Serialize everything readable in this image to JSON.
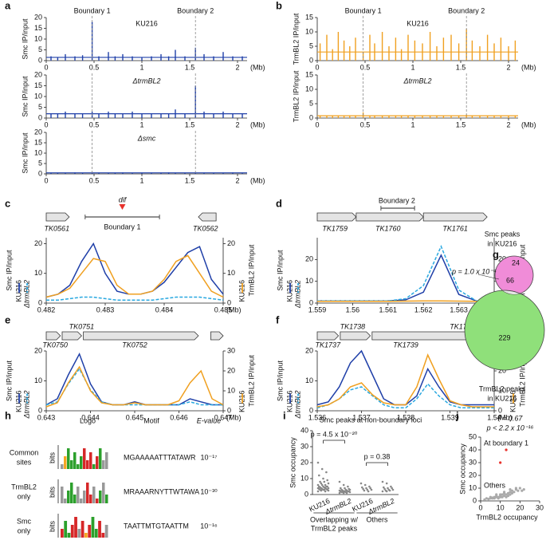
{
  "chart_data": [
    {
      "type": "bar",
      "panel": "a",
      "ylabel": "Smc IP/input",
      "label": "KU216",
      "color": "#1f3fa8",
      "x": [
        0.05,
        0.12,
        0.2,
        0.3,
        0.38,
        0.48,
        0.55,
        0.65,
        0.72,
        0.8,
        0.9,
        1.0,
        1.1,
        1.2,
        1.28,
        1.35,
        1.45,
        1.56,
        1.65,
        1.75,
        1.85,
        1.95,
        2.05
      ],
      "values": [
        2,
        1.5,
        3,
        2,
        2.5,
        18,
        2,
        4,
        2,
        3,
        2,
        1.5,
        2,
        3,
        2,
        5,
        2,
        6,
        3,
        2,
        4,
        2,
        2
      ],
      "xlim": [
        0,
        2.1
      ],
      "xticks": [
        0,
        0.5,
        1,
        1.5,
        2
      ],
      "ylim": [
        0,
        20
      ],
      "yticks": [
        0,
        5,
        10,
        15,
        20
      ],
      "xunit": "(Mb)",
      "vlines": [
        0.48,
        1.56
      ],
      "vline_labels": [
        "Boundary 1",
        "Boundary 2"
      ]
    },
    {
      "type": "bar",
      "ylabel": "Smc IP/input",
      "label": "ΔtrmBL2",
      "color": "#1f3fa8",
      "x": [
        0.05,
        0.12,
        0.2,
        0.3,
        0.38,
        0.48,
        0.55,
        0.65,
        0.72,
        0.8,
        0.9,
        1.0,
        1.1,
        1.2,
        1.28,
        1.35,
        1.45,
        1.56,
        1.65,
        1.75,
        1.85,
        1.95,
        2.05
      ],
      "values": [
        2,
        2,
        3,
        2,
        2,
        3,
        2,
        3,
        2,
        2,
        3,
        2,
        2,
        2,
        2,
        4,
        2,
        15,
        3,
        2,
        3,
        2,
        2
      ],
      "xlim": [
        0,
        2.1
      ],
      "xticks": [
        0,
        0.5,
        1,
        1.5,
        2
      ],
      "ylim": [
        0,
        20
      ],
      "yticks": [
        0,
        5,
        10,
        15,
        20
      ],
      "xunit": "(Mb)",
      "vlines": [
        0.48,
        1.56
      ]
    },
    {
      "type": "bar",
      "ylabel": "Smc IP/input",
      "label": "Δsmc",
      "color": "#1f3fa8",
      "x": [
        0.05,
        0.12,
        0.2,
        0.3,
        0.38,
        0.48,
        0.55,
        0.65,
        0.72,
        0.8,
        0.9,
        1.0,
        1.1,
        1.2,
        1.28,
        1.35,
        1.45,
        1.56,
        1.65,
        1.75,
        1.85,
        1.95,
        2.05
      ],
      "values": [
        0.6,
        0.5,
        0.6,
        0.7,
        0.5,
        0.8,
        0.6,
        0.5,
        0.6,
        0.7,
        0.5,
        0.6,
        0.6,
        0.5,
        0.7,
        0.6,
        0.5,
        0.8,
        0.6,
        0.5,
        0.6,
        0.7,
        0.6
      ],
      "xlim": [
        0,
        2.1
      ],
      "xticks": [
        0,
        0.5,
        1,
        1.5,
        2
      ],
      "ylim": [
        0,
        20
      ],
      "yticks": [
        0,
        5,
        10,
        15,
        20
      ],
      "xunit": "(Mb)",
      "vlines": [
        0.48,
        1.56
      ]
    },
    {
      "type": "bar",
      "panel": "b",
      "ylabel": "TrmBL2 IP/input",
      "label": "KU216",
      "color": "#f0a020",
      "x": [
        0.03,
        0.1,
        0.16,
        0.22,
        0.28,
        0.34,
        0.4,
        0.48,
        0.55,
        0.6,
        0.68,
        0.75,
        0.82,
        0.88,
        0.95,
        1.02,
        1.1,
        1.18,
        1.25,
        1.32,
        1.4,
        1.48,
        1.56,
        1.62,
        1.7,
        1.78,
        1.85,
        1.92,
        2.0,
        2.07
      ],
      "values": [
        6,
        9,
        4,
        10,
        7,
        5,
        8,
        3,
        9,
        6,
        10,
        5,
        8,
        4,
        9,
        7,
        6,
        10,
        5,
        8,
        9,
        6,
        11,
        7,
        5,
        9,
        6,
        8,
        5,
        7
      ],
      "xlim": [
        0,
        2.1
      ],
      "xticks": [
        0,
        0.5,
        1,
        1.5,
        2
      ],
      "ylim": [
        0,
        15
      ],
      "yticks": [
        0,
        5,
        10,
        15
      ],
      "xunit": "(Mb)",
      "vlines": [
        0.48,
        1.56
      ],
      "vline_labels": [
        "Boundary 1",
        "Boundary 2"
      ]
    },
    {
      "type": "bar",
      "ylabel": "TrmBL2 IP/input",
      "label": "ΔtrmBL2",
      "color": "#f0a020",
      "x": [
        0.03,
        0.1,
        0.16,
        0.22,
        0.28,
        0.34,
        0.4,
        0.48,
        0.55,
        0.6,
        0.68,
        0.75,
        0.82,
        0.88,
        0.95,
        1.02,
        1.1,
        1.18,
        1.25,
        1.32,
        1.4,
        1.48,
        1.56,
        1.62,
        1.7,
        1.78,
        1.85,
        1.92,
        2.0,
        2.07
      ],
      "values": [
        0.8,
        0.9,
        0.8,
        0.9,
        0.8,
        0.9,
        0.8,
        2,
        0.9,
        0.8,
        0.9,
        0.8,
        0.9,
        0.8,
        0.9,
        0.8,
        0.9,
        0.8,
        0.9,
        0.8,
        0.9,
        0.8,
        1.2,
        0.9,
        0.8,
        0.9,
        0.8,
        0.9,
        0.8,
        0.9
      ],
      "xlim": [
        0,
        2.1
      ],
      "xticks": [
        0,
        0.5,
        1,
        1.5,
        2
      ],
      "ylim": [
        0,
        15
      ],
      "yticks": [
        0,
        5,
        10,
        15
      ],
      "xunit": "(Mb)",
      "vlines": [
        0.48,
        1.56
      ]
    },
    {
      "type": "line",
      "panel": "c",
      "genes": [
        "TK0561",
        "TK0562"
      ],
      "annotations": [
        "dif",
        "Boundary 1"
      ],
      "ylabel": "Smc IP/input",
      "y2label": "TrmBL2 IP/input",
      "xunit": "(Mb)",
      "x": [
        0.482,
        0.4822,
        0.4824,
        0.4826,
        0.4828,
        0.483,
        0.4832,
        0.4834,
        0.4836,
        0.4838,
        0.484,
        0.4842,
        0.4844,
        0.4846,
        0.4848,
        0.485
      ],
      "series": [
        {
          "name": "KU216",
          "color": "#1f3fa8",
          "values": [
            2,
            3,
            6,
            14,
            20,
            10,
            4,
            3,
            3,
            4,
            7,
            12,
            17,
            19,
            8,
            3
          ]
        },
        {
          "name": "ΔtrmBL2",
          "color": "#29a8e0",
          "dashed": true,
          "values": [
            1,
            1,
            1.5,
            2,
            2,
            1.5,
            1,
            1,
            1,
            1,
            1.5,
            2,
            2,
            2,
            1.5,
            1
          ]
        },
        {
          "name": "KU216",
          "color": "#f0a020",
          "axis": "y2",
          "values": [
            2,
            3,
            5,
            10,
            15,
            14,
            6,
            3,
            3,
            4,
            8,
            14,
            16,
            10,
            4,
            2
          ]
        }
      ],
      "xlim": [
        0.482,
        0.485
      ],
      "xticks": [
        0.482,
        0.483,
        0.484,
        0.485
      ],
      "ylim": [
        0,
        22
      ],
      "yticks": [
        0,
        10,
        20
      ],
      "y2lim": [
        0,
        22
      ],
      "y2ticks": [
        0,
        10,
        20
      ]
    },
    {
      "type": "line",
      "panel": "d",
      "genes": [
        "TK1759",
        "TK1760",
        "TK1761"
      ],
      "annotations": [
        "Boundary 2"
      ],
      "ylabel": "Smc IP/input",
      "y2label": "TrmBL2 IP/input",
      "xunit": "(Mb)",
      "x": [
        1.559,
        1.5595,
        1.56,
        1.5605,
        1.561,
        1.5615,
        1.562,
        1.5625,
        1.563,
        1.5635,
        1.564
      ],
      "series": [
        {
          "name": "KU216",
          "color": "#1f3fa8",
          "values": [
            1,
            1,
            1,
            1,
            1,
            1.5,
            5,
            22,
            4,
            1,
            1
          ]
        },
        {
          "name": "ΔtrmBL2",
          "color": "#29a8e0",
          "dashed": true,
          "values": [
            1,
            1,
            1,
            1,
            1,
            2,
            8,
            26,
            6,
            1,
            1
          ]
        },
        {
          "name": "KU216",
          "color": "#f0a020",
          "axis": "y2",
          "values": [
            0.8,
            0.8,
            0.8,
            0.8,
            0.8,
            0.9,
            1,
            1,
            0.9,
            0.8,
            0.8
          ]
        }
      ],
      "xlim": [
        1.559,
        1.564
      ],
      "xticks": [
        1.559,
        1.56,
        1.561,
        1.562,
        1.563,
        1.564
      ],
      "ylim": [
        0,
        30
      ],
      "yticks": [
        0,
        10,
        20
      ],
      "y2lim": [
        0,
        30
      ],
      "y2ticks": [
        0,
        10,
        20
      ]
    },
    {
      "type": "line",
      "panel": "e",
      "genes": [
        "TK0751",
        "TK0750",
        "TK0752"
      ],
      "ylabel": "Smc IP/input",
      "y2label": "TrmBL2 IP/input",
      "xunit": "(Mb)",
      "x": [
        0.643,
        0.64325,
        0.6435,
        0.64375,
        0.644,
        0.64425,
        0.6445,
        0.64475,
        0.645,
        0.64525,
        0.6455,
        0.64575,
        0.646,
        0.64625,
        0.6465,
        0.64675,
        0.647
      ],
      "series": [
        {
          "name": "KU216",
          "color": "#1f3fa8",
          "values": [
            2,
            4,
            12,
            19,
            9,
            3,
            2,
            2,
            3,
            2,
            2,
            2,
            2,
            4,
            3,
            2,
            2
          ]
        },
        {
          "name": "ΔtrmBL2",
          "color": "#29a8e0",
          "dashed": true,
          "values": [
            2,
            3,
            9,
            14,
            7,
            3,
            2,
            2,
            2,
            2,
            2,
            2,
            2,
            3,
            2,
            2,
            2
          ]
        },
        {
          "name": "KU216",
          "color": "#f0a020",
          "axis": "y2",
          "values": [
            2,
            4,
            14,
            22,
            10,
            4,
            3,
            3,
            4,
            3,
            3,
            3,
            5,
            14,
            20,
            6,
            3
          ]
        }
      ],
      "xlim": [
        0.643,
        0.647
      ],
      "xticks": [
        0.643,
        0.644,
        0.645,
        0.646,
        0.647
      ],
      "ylim": [
        0,
        20
      ],
      "yticks": [
        0,
        10,
        20
      ],
      "y2lim": [
        0,
        30
      ],
      "y2ticks": [
        0,
        10,
        20,
        30
      ]
    },
    {
      "type": "line",
      "panel": "f",
      "genes": [
        "TK1738",
        "TK1740",
        "TK1737",
        "TK1739"
      ],
      "ylabel": "Smc IP/input",
      "y2label": "TrmBL2 IP/input",
      "xunit": "(Mb)",
      "x": [
        1.536,
        1.53625,
        1.5365,
        1.53675,
        1.537,
        1.53725,
        1.5375,
        1.53775,
        1.538,
        1.53825,
        1.5385,
        1.53875,
        1.539,
        1.53925,
        1.5395,
        1.53975,
        1.54
      ],
      "series": [
        {
          "name": "KU216",
          "color": "#1f3fa8",
          "values": [
            2,
            3,
            8,
            16,
            20,
            12,
            4,
            2,
            2,
            5,
            14,
            8,
            3,
            2,
            2,
            2,
            2
          ]
        },
        {
          "name": "ΔtrmBL2",
          "color": "#29a8e0",
          "dashed": true,
          "values": [
            1,
            2,
            4,
            7,
            8,
            5,
            2,
            1,
            1,
            4,
            9,
            5,
            2,
            1,
            1,
            1,
            1
          ]
        },
        {
          "name": "KU216",
          "color": "#f0a020",
          "axis": "y2",
          "values": [
            2,
            3,
            6,
            12,
            14,
            8,
            4,
            3,
            3,
            12,
            28,
            16,
            5,
            3,
            2,
            2,
            2
          ]
        }
      ],
      "xlim": [
        1.536,
        1.54
      ],
      "xticks": [
        1.536,
        1.537,
        1.538,
        1.539,
        1.54
      ],
      "ylim": [
        0,
        20
      ],
      "yticks": [
        0,
        10,
        20
      ],
      "y2lim": [
        0,
        30
      ],
      "y2ticks": [
        0,
        10,
        20,
        30
      ]
    },
    {
      "type": "venn",
      "panel": "g",
      "sets": [
        {
          "label": [
            "Smc peaks",
            "in KU216"
          ],
          "color": "#f08cd8"
        },
        {
          "label": [
            "TrmBL2 peaks",
            "in KU216"
          ],
          "color": "#8fe07a"
        }
      ],
      "counts": [
        24,
        66,
        229
      ],
      "p_label": "p = 1.0 x 10⁻⁴"
    },
    {
      "type": "table",
      "panel": "h",
      "columns": [
        "Logo",
        "Motif",
        "E-value"
      ],
      "logo_axis": "bits",
      "rows": [
        {
          "name": [
            "Common",
            "sites"
          ],
          "motif": "MGAAAAATTTATAWR",
          "evalue": "10⁻¹⁷"
        },
        {
          "name": [
            "TrmBL2",
            "only"
          ],
          "motif": "MRAAARNYTTWTAWA",
          "evalue": "10⁻³⁰"
        },
        {
          "name": [
            "Smc",
            "only"
          ],
          "motif": "TAATTMTGTAATTM",
          "evalue": "10⁻¹⁶"
        }
      ]
    },
    {
      "type": "strip",
      "panel": "i",
      "title": "Smc peaks at non-boundary loci",
      "ylabel": "Smc occupancy",
      "color": "#888888",
      "categories": [
        "KU216",
        "ΔtrmBL2",
        "KU216",
        "ΔtrmBL2"
      ],
      "values": [
        [
          20,
          16,
          14,
          12,
          10,
          9,
          8,
          8,
          7,
          7,
          6,
          6,
          6,
          5,
          5,
          5,
          5,
          4.5,
          4.5,
          4,
          4,
          4,
          4,
          3.5,
          3.5,
          3.5,
          3,
          3,
          3,
          3,
          2.5,
          2.5,
          2,
          2
        ],
        [
          8,
          6,
          5,
          4,
          4,
          3.5,
          3,
          3,
          3,
          2.5,
          2.5,
          2.5,
          2,
          2,
          2,
          2,
          2,
          1.5,
          1.5,
          1.5,
          1.5,
          1,
          1,
          1
        ],
        [
          7,
          6,
          5,
          4.5,
          4,
          4,
          3.5,
          3,
          3,
          2.5,
          2
        ],
        [
          8,
          7,
          5,
          4.5,
          4,
          4,
          3.5,
          3,
          3,
          2.5,
          2.5,
          2,
          2
        ]
      ],
      "groups": [
        [
          "Overlapping w/",
          "TrmBL2 peaks"
        ],
        [
          "Others"
        ]
      ],
      "p_values": [
        "p = 4.5 x 10⁻²⁰",
        "p = 0.38"
      ],
      "ylim": [
        0,
        40
      ],
      "yticks": [
        0,
        10,
        20,
        30,
        40
      ]
    },
    {
      "type": "scatter",
      "panel": "j",
      "annotations": [
        "r = 0.67",
        "p < 2.2 x 10⁻¹⁶"
      ],
      "xlabel": "TrmBL2 occupancy",
      "ylabel": "Smc occupancy",
      "series": [
        {
          "name": "At boundary 1",
          "color": "#e8322c",
          "x": [
            13,
            10
          ],
          "values": [
            40,
            30
          ]
        },
        {
          "name": "Others",
          "color": "#aaaaaa",
          "x": [
            2,
            3,
            4,
            5,
            5,
            6,
            6,
            7,
            7,
            8,
            8,
            9,
            9,
            10,
            10,
            11,
            11,
            12,
            12,
            13,
            13,
            14,
            14,
            15,
            15,
            16,
            16,
            17,
            18,
            19,
            20,
            21,
            22,
            12,
            15,
            18,
            10,
            8
          ],
          "values": [
            1,
            2,
            1.5,
            2,
            3,
            2,
            2.5,
            3,
            2,
            3,
            4,
            3,
            2,
            4,
            3,
            5,
            3,
            4,
            6,
            5,
            3,
            6,
            4,
            7,
            5,
            6,
            8,
            7,
            9,
            8,
            10,
            8,
            9,
            7,
            9,
            10,
            5,
            5
          ]
        }
      ],
      "xlim": [
        0,
        30
      ],
      "xticks": [
        0,
        10,
        20,
        30
      ],
      "ylim": [
        0,
        50
      ],
      "yticks": [
        0,
        10,
        20,
        30,
        40,
        50
      ]
    }
  ]
}
